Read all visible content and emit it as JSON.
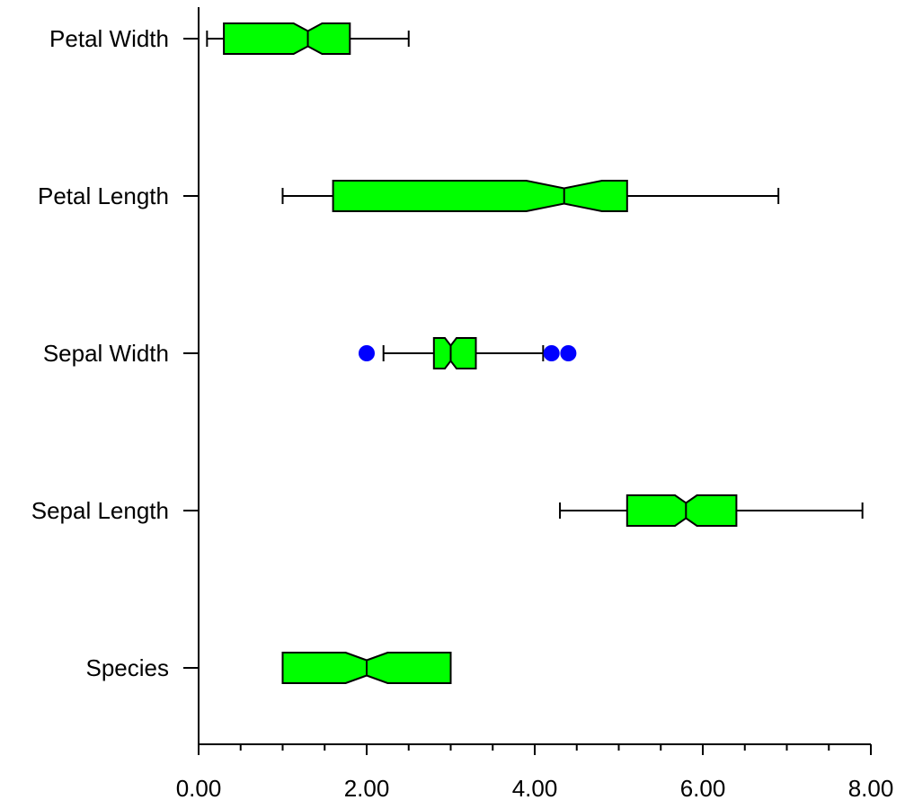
{
  "chart_data": {
    "type": "boxplot",
    "orientation": "horizontal",
    "title": "",
    "xlabel": "",
    "ylabel": "",
    "xlim": [
      0,
      8
    ],
    "x_ticks": [
      "0.00",
      "2.00",
      "4.00",
      "6.00",
      "8.00"
    ],
    "x_minor_step": 0.5,
    "notched": true,
    "grid": false,
    "colors": {
      "box_fill": "#00ff00",
      "outlier": "#0000ff",
      "line": "#000000"
    },
    "categories": [
      "Petal Width",
      "Petal Length",
      "Sepal Width",
      "Sepal Length",
      "Species"
    ],
    "boxes": [
      {
        "label": "Petal Width",
        "whisker_low": 0.1,
        "q1": 0.3,
        "notch_low": 1.13,
        "median": 1.3,
        "notch_high": 1.47,
        "q3": 1.8,
        "whisker_high": 2.5,
        "outliers": []
      },
      {
        "label": "Petal Length",
        "whisker_low": 1.0,
        "q1": 1.6,
        "notch_low": 3.9,
        "median": 4.35,
        "notch_high": 4.8,
        "q3": 5.1,
        "whisker_high": 6.9,
        "outliers": []
      },
      {
        "label": "Sepal Width",
        "whisker_low": 2.2,
        "q1": 2.8,
        "notch_low": 2.93,
        "median": 3.0,
        "notch_high": 3.07,
        "q3": 3.3,
        "whisker_high": 4.1,
        "outliers": [
          2.0,
          4.2,
          4.4
        ]
      },
      {
        "label": "Sepal Length",
        "whisker_low": 4.3,
        "q1": 5.1,
        "notch_low": 5.67,
        "median": 5.8,
        "notch_high": 5.93,
        "q3": 6.4,
        "whisker_high": 7.9,
        "outliers": []
      },
      {
        "label": "Species",
        "whisker_low": 1.0,
        "q1": 1.0,
        "notch_low": 1.75,
        "median": 2.0,
        "notch_high": 2.25,
        "q3": 3.0,
        "whisker_high": 3.0,
        "outliers": []
      }
    ]
  }
}
